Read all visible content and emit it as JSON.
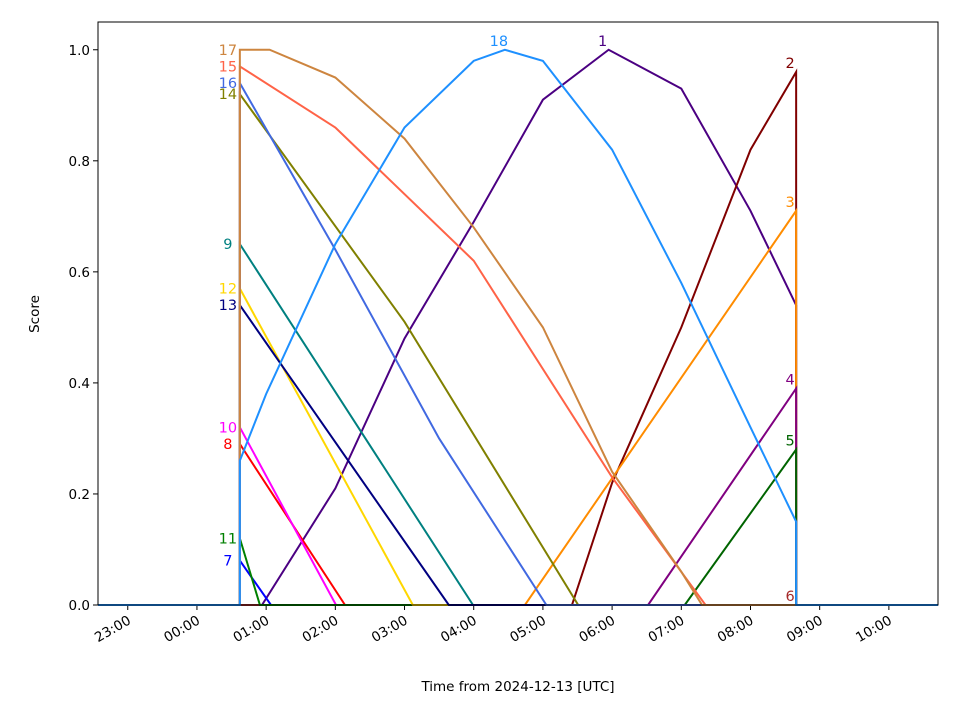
{
  "chart_data": {
    "type": "line",
    "xlabel": "Time from 2024-12-13 [UTC]",
    "ylabel": "Score",
    "xlim": [
      -1.43,
      10.71
    ],
    "ylim": [
      0,
      1.05
    ],
    "xticks": [
      {
        "value": -1,
        "label": "23:00"
      },
      {
        "value": 0,
        "label": "00:00"
      },
      {
        "value": 1,
        "label": "01:00"
      },
      {
        "value": 2,
        "label": "02:00"
      },
      {
        "value": 3,
        "label": "03:00"
      },
      {
        "value": 4,
        "label": "04:00"
      },
      {
        "value": 5,
        "label": "05:00"
      },
      {
        "value": 6,
        "label": "06:00"
      },
      {
        "value": 7,
        "label": "07:00"
      },
      {
        "value": 8,
        "label": "08:00"
      },
      {
        "value": 9,
        "label": "09:00"
      },
      {
        "value": 10,
        "label": "10:00"
      }
    ],
    "yticks": [
      {
        "value": 0,
        "label": "0.0"
      },
      {
        "value": 0.2,
        "label": "0.2"
      },
      {
        "value": 0.4,
        "label": "0.4"
      },
      {
        "value": 0.6,
        "label": "0.6"
      },
      {
        "value": 0.8,
        "label": "0.8"
      },
      {
        "value": 1,
        "label": "1.0"
      }
    ],
    "series": [
      {
        "name": "1",
        "color": "#4b0082",
        "x": [
          -1.43,
          0.94,
          2,
          3,
          4,
          5,
          5.95,
          7,
          8,
          8.66,
          8.66,
          10.71
        ],
        "values": [
          0,
          0,
          0.21,
          0.48,
          0.69,
          0.91,
          1.0,
          0.93,
          0.71,
          0.54,
          0,
          0
        ]
      },
      {
        "name": "2",
        "color": "#800000",
        "x": [
          -1.43,
          5.42,
          6,
          7,
          8,
          8.66,
          8.66,
          10.71
        ],
        "values": [
          0,
          0,
          0.22,
          0.5,
          0.82,
          0.96,
          0,
          0
        ]
      },
      {
        "name": "3",
        "color": "#ff8c00",
        "x": [
          -1.43,
          4.74,
          8.66,
          8.66,
          10.71
        ],
        "values": [
          0,
          0,
          0.71,
          0,
          0
        ]
      },
      {
        "name": "4",
        "color": "#800080",
        "x": [
          -1.43,
          6.52,
          8.66,
          8.66,
          10.71
        ],
        "values": [
          0,
          0,
          0.39,
          0,
          0
        ]
      },
      {
        "name": "5",
        "color": "#006400",
        "x": [
          -1.43,
          7.05,
          8.66,
          8.66,
          10.71
        ],
        "values": [
          0,
          0,
          0.28,
          0,
          0
        ]
      },
      {
        "name": "6",
        "color": "#a52a2a",
        "x": [
          -1.43,
          8.66
        ],
        "values": [
          0,
          0
        ]
      },
      {
        "name": "7",
        "color": "#0000ff",
        "x": [
          -1.43,
          0.62,
          0.62,
          1.07,
          10.71
        ],
        "values": [
          0,
          0,
          0.08,
          0,
          0
        ]
      },
      {
        "name": "8",
        "color": "#ff0000",
        "x": [
          -1.43,
          0.62,
          0.62,
          2.14,
          10.71
        ],
        "values": [
          0,
          0,
          0.29,
          0,
          0
        ]
      },
      {
        "name": "9",
        "color": "#008080",
        "x": [
          -1.43,
          0.62,
          0.62,
          3.99,
          10.71
        ],
        "values": [
          0,
          0,
          0.65,
          0,
          0
        ]
      },
      {
        "name": "10",
        "color": "#ff00ff",
        "x": [
          -1.43,
          0.62,
          0.62,
          2.01,
          10.71
        ],
        "values": [
          0,
          0,
          0.32,
          0,
          0
        ]
      },
      {
        "name": "11",
        "color": "#008000",
        "x": [
          -1.43,
          0.62,
          0.62,
          0.91,
          10.71
        ],
        "values": [
          0,
          0,
          0.12,
          0,
          0
        ]
      },
      {
        "name": "12",
        "color": "#ffd700",
        "x": [
          -1.43,
          0.62,
          0.62,
          3.12,
          10.71
        ],
        "values": [
          0,
          0,
          0.57,
          0,
          0
        ]
      },
      {
        "name": "13",
        "color": "#000080",
        "x": [
          -1.43,
          0.62,
          0.62,
          3.64,
          10.71
        ],
        "values": [
          0,
          0,
          0.54,
          0,
          0
        ]
      },
      {
        "name": "14",
        "color": "#808000",
        "x": [
          -1.43,
          0.62,
          0.62,
          3,
          5.51,
          10.71
        ],
        "values": [
          0,
          0,
          0.92,
          0.51,
          0,
          0
        ]
      },
      {
        "name": "15",
        "color": "#ff6347",
        "x": [
          -1.43,
          0.62,
          0.62,
          2,
          4,
          6,
          7.35,
          10.71
        ],
        "values": [
          0,
          0,
          0.97,
          0.86,
          0.62,
          0.23,
          0,
          0
        ]
      },
      {
        "name": "16",
        "color": "#4169e1",
        "x": [
          -1.43,
          0.62,
          0.62,
          2,
          3.5,
          5.05,
          10.71
        ],
        "values": [
          0,
          0,
          0.94,
          0.64,
          0.3,
          0,
          0
        ]
      },
      {
        "name": "17",
        "color": "#cd853f",
        "x": [
          -1.43,
          0.62,
          0.62,
          1.05,
          2,
          3,
          4,
          5,
          6,
          7,
          7.3,
          10.71
        ],
        "values": [
          0,
          0,
          1.0,
          1.0,
          0.95,
          0.84,
          0.68,
          0.5,
          0.24,
          0.06,
          0,
          0
        ]
      },
      {
        "name": "18",
        "color": "#1e90ff",
        "x": [
          -1.43,
          0.62,
          0.62,
          1,
          2,
          3,
          4,
          4.45,
          5,
          6,
          7,
          8,
          8.66,
          8.66,
          10.71
        ],
        "values": [
          0,
          0,
          0.26,
          0.38,
          0.65,
          0.86,
          0.98,
          1.0,
          0.98,
          0.82,
          0.58,
          0.32,
          0.15,
          0,
          0
        ]
      }
    ]
  }
}
